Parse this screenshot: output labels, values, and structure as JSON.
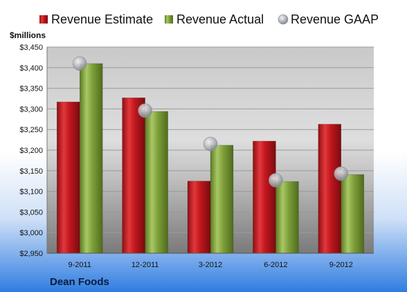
{
  "chart_data": {
    "type": "bar",
    "unit_label": "$millions",
    "company": "Dean Foods",
    "categories": [
      "9-2011",
      "12-2011",
      "3-2012",
      "6-2012",
      "9-2012"
    ],
    "ylim": [
      2950,
      3450
    ],
    "ytick_step": 50,
    "ytick_labels": [
      "$2,950",
      "$3,000",
      "$3,050",
      "$3,100",
      "$3,150",
      "$3,200",
      "$3,250",
      "$3,300",
      "$3,350",
      "$3,400",
      "$3,450"
    ],
    "grid": true,
    "legend_position": "top",
    "series": [
      {
        "name": "Revenue Estimate",
        "kind": "bar",
        "color": "#c0171d",
        "values": [
          3317,
          3327,
          3125,
          3222,
          3263
        ]
      },
      {
        "name": "Revenue Actual",
        "kind": "bar",
        "color": "#7fa03a",
        "values": [
          3410,
          3294,
          3212,
          3124,
          3141
        ]
      },
      {
        "name": "Revenue GAAP",
        "kind": "marker",
        "color": "#9aa0a8",
        "values": [
          3410,
          3296,
          3215,
          3127,
          3143
        ]
      }
    ]
  }
}
